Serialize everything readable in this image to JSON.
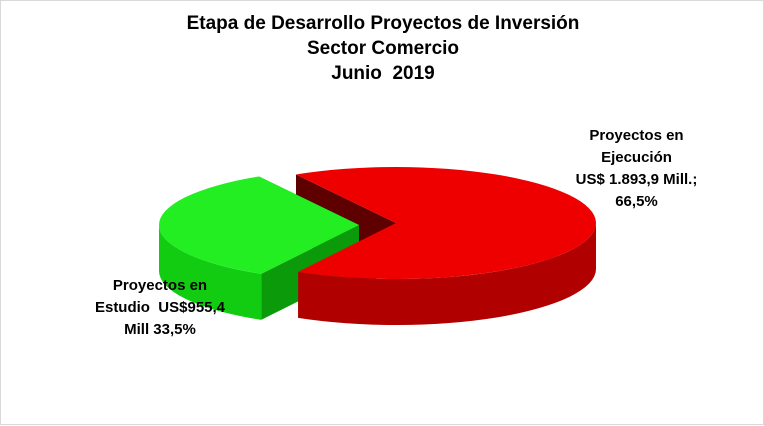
{
  "chart_data": {
    "type": "pie",
    "style": "3d-exploded",
    "title_lines": [
      "Etapa de Desarrollo Proyectos de Inversión",
      "Sector Comercio",
      "Junio  2019"
    ],
    "slices": [
      {
        "label_lines": [
          "Proyectos en",
          "Ejecución",
          "US$ 1.893,9 Mill.;",
          "66,5%"
        ],
        "value": 1893.9,
        "percent": 66.5,
        "color": "#ee0000",
        "color_side": "#b00000",
        "color_dark": "#5e0000"
      },
      {
        "label_lines": [
          "Proyectos en",
          "Estudio  US$955,4",
          "Mill 33,5%"
        ],
        "value": 955.4,
        "percent": 33.5,
        "color": "#22ee22",
        "color_side": "#11cc11",
        "color_dark": "#0a9a0a"
      }
    ],
    "legend": "none"
  }
}
